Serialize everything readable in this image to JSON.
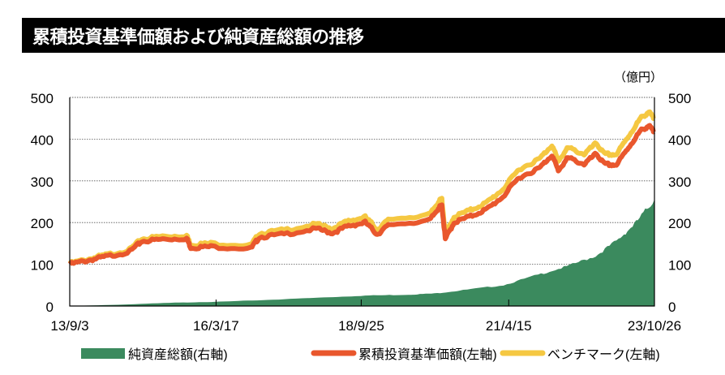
{
  "chart_data": {
    "type": "line",
    "title": "累積投資基準価額および純資産総額の推移",
    "unit_label": "（億円）",
    "xlim": [
      2013.67,
      2023.82
    ],
    "ylim_left": [
      0,
      500
    ],
    "ylim_right": [
      0,
      500
    ],
    "yticks": [
      "0",
      "100",
      "200",
      "300",
      "400",
      "500"
    ],
    "ytick_values": [
      0,
      100,
      200,
      300,
      400,
      500
    ],
    "xticks": [
      {
        "label": "13/9/3",
        "x": 2013.67
      },
      {
        "label": "16/3/17",
        "x": 2016.21
      },
      {
        "label": "18/9/25",
        "x": 2018.73
      },
      {
        "label": "21/4/15",
        "x": 2021.29
      },
      {
        "label": "23/10/26",
        "x": 2023.82
      }
    ],
    "grid": "horizontal dotted",
    "legend_position": "bottom",
    "series": [
      {
        "name": "純資産総額(右軸)",
        "kind": "area",
        "axis": "right",
        "color": "#3b8a5e",
        "x": [
          2013.67,
          2014.5,
          2015.5,
          2016.2,
          2017,
          2018,
          2018.8,
          2019.5,
          2020,
          2020.5,
          2021.2,
          2021.8,
          2022.3,
          2022.8,
          2023.2,
          2023.5,
          2023.82
        ],
        "values": [
          0,
          3,
          8,
          10,
          14,
          20,
          25,
          27,
          30,
          38,
          50,
          75,
          95,
          120,
          160,
          200,
          255
        ]
      },
      {
        "name": "累積投資基準価額(左軸)",
        "kind": "line",
        "axis": "left",
        "color": "#e9572d",
        "x": [
          2013.67,
          2014.01,
          2014.29,
          2014.71,
          2014.92,
          2015.28,
          2015.7,
          2015.77,
          2016.12,
          2016.82,
          2016.96,
          2017.39,
          2017.95,
          2018.23,
          2018.51,
          2018.8,
          2019.01,
          2019.22,
          2019.92,
          2020.07,
          2020.13,
          2020.19,
          2020.34,
          2020.63,
          2020.91,
          2021.19,
          2021.47,
          2021.82,
          2022.04,
          2022.15,
          2022.32,
          2022.6,
          2022.81,
          2022.95,
          2023.16,
          2023.37,
          2023.58,
          2023.72,
          2023.81
        ],
        "values": [
          100,
          110,
          118,
          130,
          155,
          160,
          162,
          140,
          142,
          138,
          165,
          172,
          185,
          175,
          192,
          200,
          172,
          195,
          205,
          235,
          240,
          160,
          200,
          215,
          232,
          262,
          308,
          330,
          362,
          325,
          355,
          340,
          365,
          340,
          338,
          380,
          420,
          432,
          418
        ]
      },
      {
        "name": "ベンチマーク(左軸)",
        "kind": "line",
        "axis": "left",
        "color": "#f5c842",
        "x": [
          2013.67,
          2014.01,
          2014.29,
          2014.71,
          2014.92,
          2015.28,
          2015.7,
          2015.77,
          2016.12,
          2016.82,
          2016.96,
          2017.39,
          2017.95,
          2018.23,
          2018.51,
          2018.8,
          2019.01,
          2019.22,
          2019.92,
          2020.07,
          2020.13,
          2020.19,
          2020.34,
          2020.63,
          2020.91,
          2021.19,
          2021.47,
          2021.82,
          2022.04,
          2022.15,
          2022.32,
          2022.6,
          2022.81,
          2022.95,
          2023.16,
          2023.37,
          2023.58,
          2023.72,
          2023.81
        ],
        "values": [
          102,
          113,
          122,
          135,
          161,
          167,
          169,
          147,
          150,
          146,
          174,
          182,
          196,
          186,
          204,
          213,
          184,
          208,
          219,
          250,
          256,
          172,
          214,
          230,
          248,
          280,
          328,
          352,
          386,
          348,
          379,
          364,
          390,
          364,
          363,
          407,
          450,
          465,
          450
        ]
      }
    ]
  }
}
